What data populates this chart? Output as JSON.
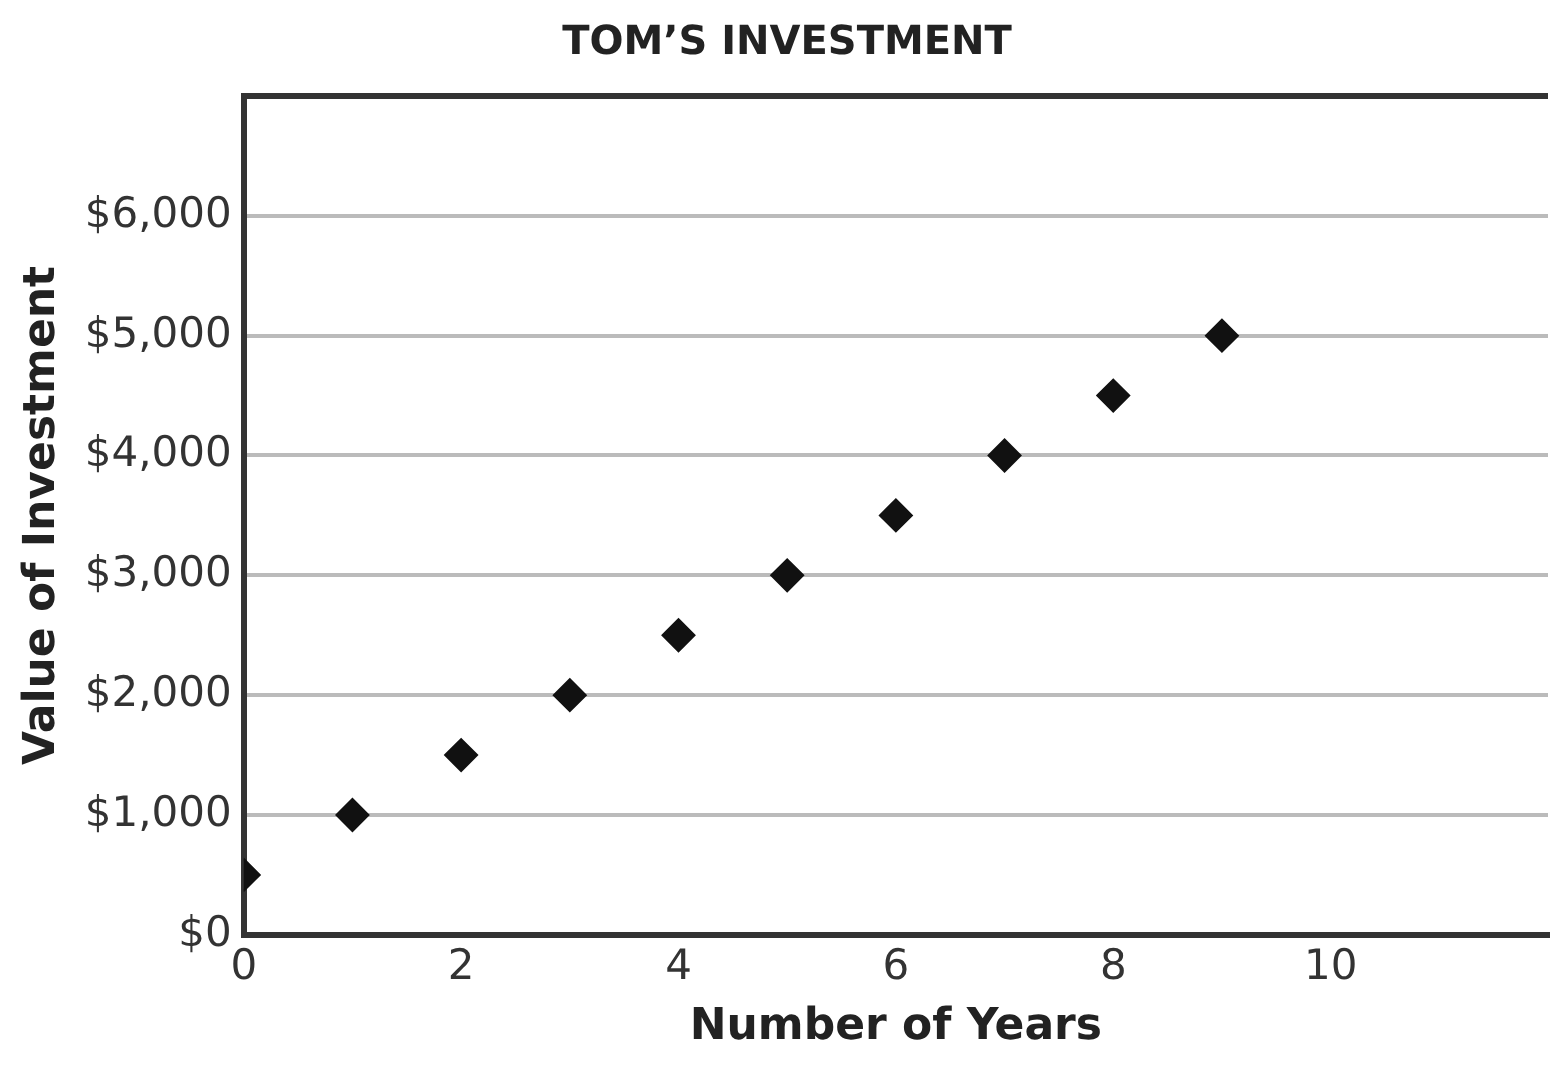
{
  "chart_data": {
    "type": "scatter",
    "title": "TOM’S INVESTMENT",
    "xlabel": "Number of Years",
    "ylabel": "Value of Investment",
    "x": [
      0,
      1,
      2,
      3,
      4,
      5,
      6,
      7,
      8,
      9
    ],
    "series": [
      {
        "color": "#111111",
        "values": [
          500,
          1000,
          1500,
          2000,
          2500,
          3000,
          3500,
          4000,
          4500,
          5000
        ]
      }
    ],
    "xlim": [
      0,
      12
    ],
    "xticks": [
      0,
      2,
      4,
      6,
      8,
      10
    ],
    "ylim": [
      0,
      7000
    ],
    "yticks": [
      {
        "value": 0,
        "label": "$0"
      },
      {
        "value": 1000,
        "label": "$1,000"
      },
      {
        "value": 2000,
        "label": "$2,000"
      },
      {
        "value": 3000,
        "label": "$3,000"
      },
      {
        "value": 4000,
        "label": "$4,000"
      },
      {
        "value": 5000,
        "label": "$5,000"
      },
      {
        "value": 6000,
        "label": "$6,000"
      }
    ],
    "grid": "y",
    "marker": "diamond",
    "legend": false
  }
}
